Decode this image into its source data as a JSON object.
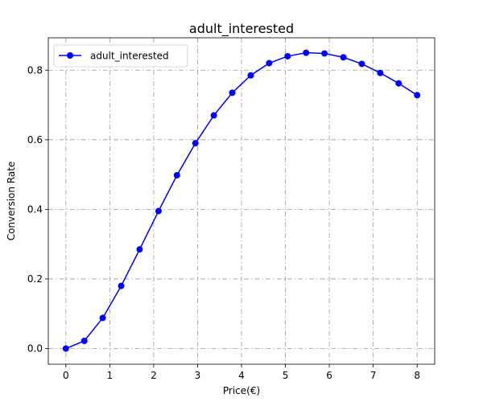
{
  "chart_data": {
    "type": "line",
    "title": "adult_interested",
    "xlabel": "Price(€)",
    "ylabel": "Conversion Rate",
    "xlim": [
      -0.4,
      8.4
    ],
    "ylim": [
      -0.045,
      0.893
    ],
    "xticks": [
      0,
      1,
      2,
      3,
      4,
      5,
      6,
      7,
      8
    ],
    "yticks": [
      0.0,
      0.2,
      0.4,
      0.6,
      0.8
    ],
    "xtick_labels": [
      "0",
      "1",
      "2",
      "3",
      "4",
      "5",
      "6",
      "7",
      "8"
    ],
    "ytick_labels": [
      "0.0",
      "0.2",
      "0.4",
      "0.6",
      "0.8"
    ],
    "grid": true,
    "legend_position": "top-left",
    "series": [
      {
        "name": "adult_interested",
        "color": "#0000ff",
        "marker": "circle",
        "x": [
          0,
          0.42,
          0.84,
          1.26,
          1.68,
          2.11,
          2.53,
          2.95,
          3.37,
          3.79,
          4.21,
          4.63,
          5.05,
          5.47,
          5.89,
          6.32,
          6.74,
          7.16,
          7.58,
          8.0
        ],
        "y": [
          0.0,
          0.022,
          0.088,
          0.18,
          0.285,
          0.395,
          0.498,
          0.59,
          0.67,
          0.735,
          0.785,
          0.82,
          0.84,
          0.85,
          0.848,
          0.837,
          0.818,
          0.792,
          0.762,
          0.728
        ]
      }
    ]
  }
}
